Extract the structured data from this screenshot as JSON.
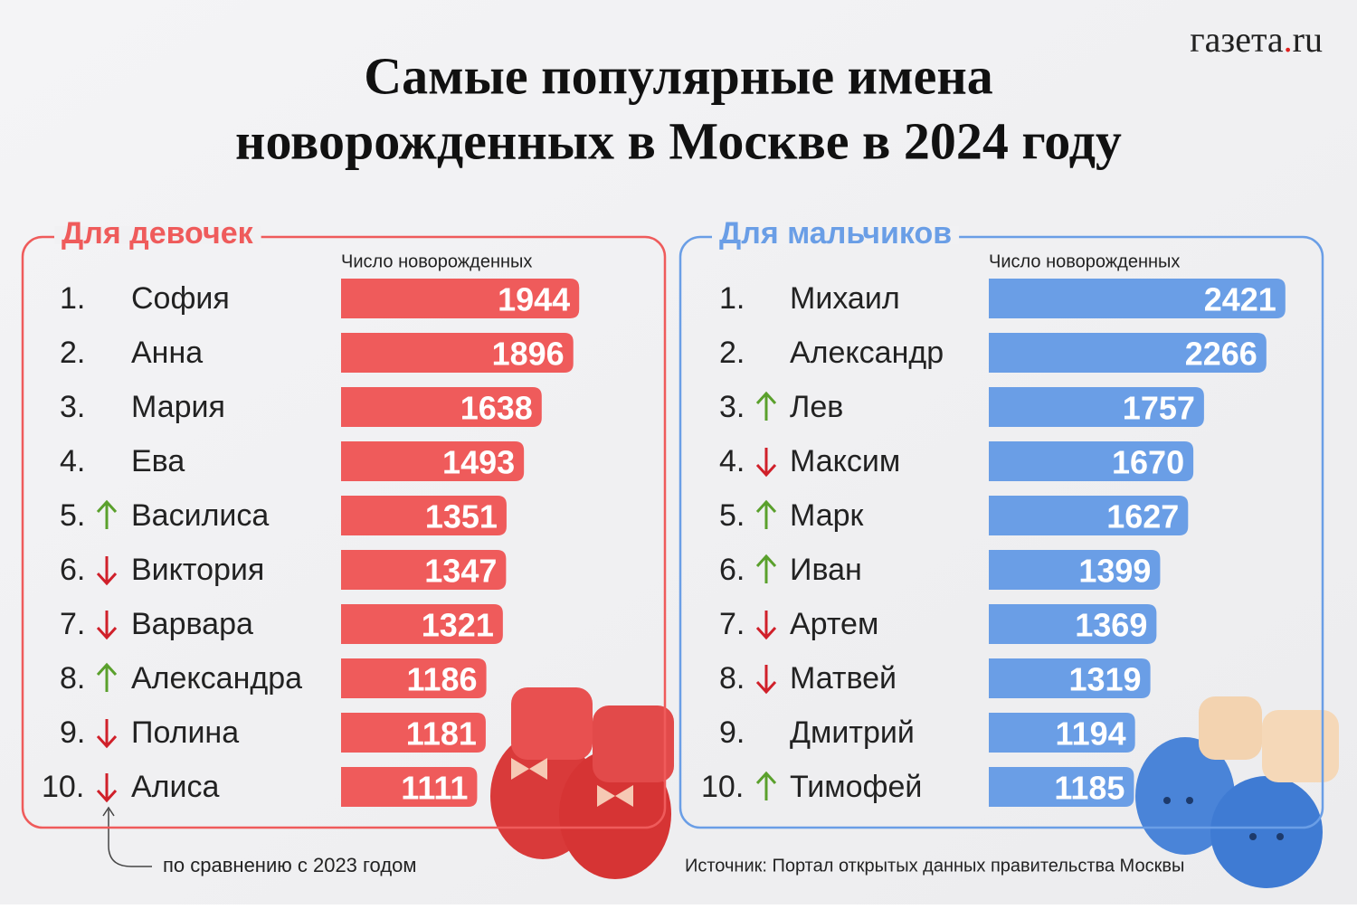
{
  "logo": [
    "газета",
    ".",
    "ru"
  ],
  "title": [
    "Самые популярные имена",
    "новорожденных в Москве в 2024 году"
  ],
  "note": "по сравнению с 2023 годом",
  "source": "Источник: Портал открытых данных правительства Москвы",
  "chart_data": [
    {
      "type": "bar",
      "orientation": "horizontal",
      "title": "Для девочек",
      "value_label": "Число новорожденных",
      "color": "#ef5b5b",
      "ranks": [
        "1.",
        "2.",
        "3.",
        "4.",
        "5.",
        "6.",
        "7.",
        "8.",
        "9.",
        "10."
      ],
      "trend": [
        null,
        null,
        null,
        null,
        "up",
        "down",
        "down",
        "up",
        "down",
        "down"
      ],
      "categories": [
        "София",
        "Анна",
        "Мария",
        "Ева",
        "Василиса",
        "Виктория",
        "Варвара",
        "Александра",
        "Полина",
        "Алиса"
      ],
      "values": [
        1944,
        1896,
        1638,
        1493,
        1351,
        1347,
        1321,
        1186,
        1181,
        1111
      ]
    },
    {
      "type": "bar",
      "orientation": "horizontal",
      "title": "Для мальчиков",
      "value_label": "Число новорожденных",
      "color": "#6a9ee6",
      "ranks": [
        "1.",
        "2.",
        "3.",
        "4.",
        "5.",
        "6.",
        "7.",
        "8.",
        "9.",
        "10."
      ],
      "trend": [
        null,
        null,
        "up",
        "down",
        "up",
        "up",
        "down",
        "down",
        null,
        "up"
      ],
      "categories": [
        "Михаил",
        "Александр",
        "Лев",
        "Максим",
        "Марк",
        "Иван",
        "Артем",
        "Матвей",
        "Дмитрий",
        "Тимофей"
      ],
      "values": [
        2421,
        2266,
        1757,
        1670,
        1627,
        1399,
        1369,
        1319,
        1194,
        1185
      ]
    }
  ]
}
